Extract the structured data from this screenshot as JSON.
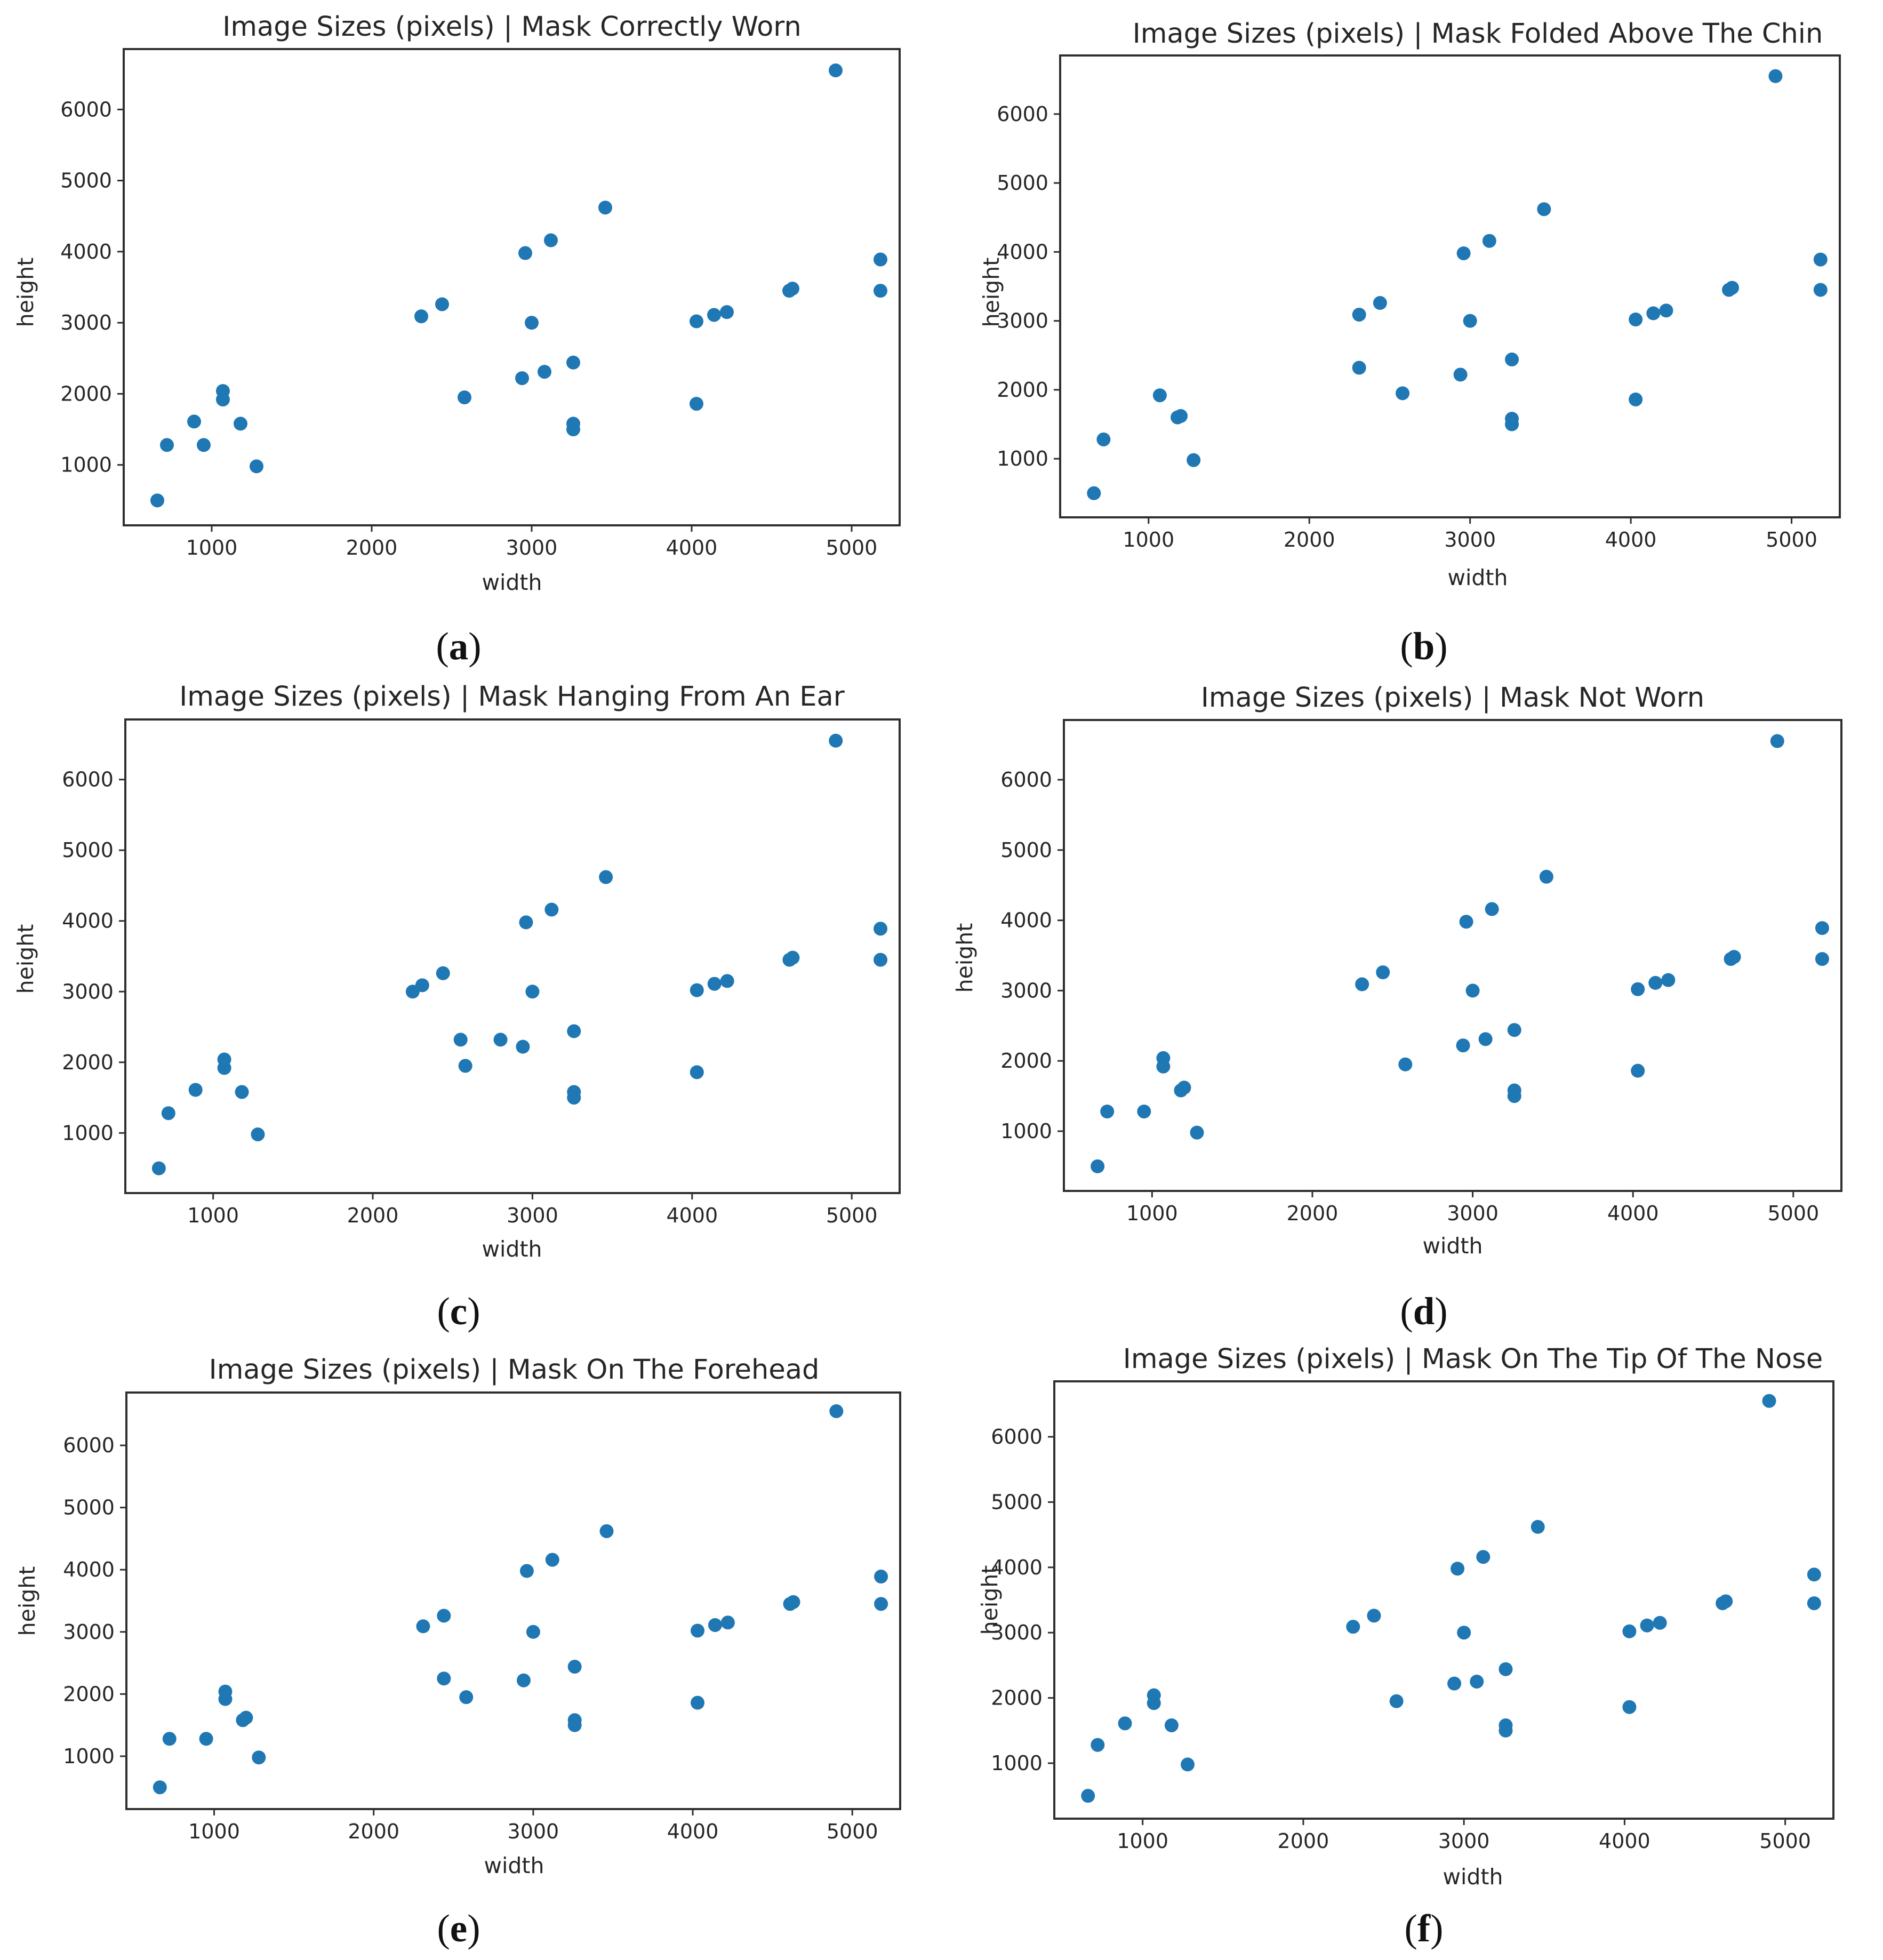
{
  "figure": {
    "point_color": "#1f77b4",
    "panels": [
      {
        "chart_data": {
          "type": "scatter",
          "title": "Image Sizes (pixels) | Mask Correctly Worn",
          "xlabel": "width",
          "ylabel": "height",
          "xlim": [
            450,
            5300
          ],
          "ylim": [
            150,
            6850
          ],
          "xticks": [
            1000,
            2000,
            3000,
            4000,
            5000
          ],
          "yticks": [
            1000,
            2000,
            3000,
            4000,
            5000,
            6000
          ],
          "points": [
            [
              660,
              500
            ],
            [
              720,
              1280
            ],
            [
              890,
              1610
            ],
            [
              950,
              1280
            ],
            [
              1070,
              2040
            ],
            [
              1070,
              1920
            ],
            [
              1180,
              1580
            ],
            [
              1280,
              980
            ],
            [
              2310,
              3090
            ],
            [
              2440,
              3260
            ],
            [
              2580,
              1950
            ],
            [
              2940,
              2220
            ],
            [
              2960,
              3980
            ],
            [
              3000,
              3000
            ],
            [
              3080,
              2310
            ],
            [
              3120,
              4160
            ],
            [
              3260,
              2440
            ],
            [
              3260,
              1580
            ],
            [
              3260,
              1500
            ],
            [
              3460,
              4620
            ],
            [
              4030,
              3020
            ],
            [
              4030,
              1860
            ],
            [
              4140,
              3110
            ],
            [
              4220,
              3150
            ],
            [
              4610,
              3450
            ],
            [
              4630,
              3480
            ],
            [
              4900,
              6550
            ],
            [
              5180,
              3890
            ],
            [
              5180,
              3450
            ]
          ]
        },
        "caption": {
          "open": "(",
          "letter": "a",
          "close": ")"
        }
      },
      {
        "chart_data": {
          "type": "scatter",
          "title": "Image Sizes (pixels) | Mask Folded Above The Chin",
          "xlabel": "width",
          "ylabel": "height",
          "xlim": [
            450,
            5300
          ],
          "ylim": [
            150,
            6850
          ],
          "xticks": [
            1000,
            2000,
            3000,
            4000,
            5000
          ],
          "yticks": [
            1000,
            2000,
            3000,
            4000,
            5000,
            6000
          ],
          "points": [
            [
              660,
              500
            ],
            [
              720,
              1280
            ],
            [
              1070,
              1920
            ],
            [
              1180,
              1600
            ],
            [
              1200,
              1620
            ],
            [
              1280,
              980
            ],
            [
              2310,
              3090
            ],
            [
              2310,
              2320
            ],
            [
              2440,
              3260
            ],
            [
              2580,
              1950
            ],
            [
              2940,
              2220
            ],
            [
              2960,
              3980
            ],
            [
              3000,
              3000
            ],
            [
              3120,
              4160
            ],
            [
              3260,
              2440
            ],
            [
              3260,
              1580
            ],
            [
              3260,
              1500
            ],
            [
              3460,
              4620
            ],
            [
              4030,
              3020
            ],
            [
              4030,
              1860
            ],
            [
              4140,
              3110
            ],
            [
              4220,
              3150
            ],
            [
              4610,
              3450
            ],
            [
              4630,
              3480
            ],
            [
              4900,
              6550
            ],
            [
              5180,
              3890
            ],
            [
              5180,
              3450
            ]
          ]
        },
        "caption": {
          "open": "(",
          "letter": "b",
          "close": ")"
        }
      },
      {
        "chart_data": {
          "type": "scatter",
          "title": "Image Sizes (pixels) | Mask Hanging From An Ear",
          "xlabel": "width",
          "ylabel": "height",
          "xlim": [
            450,
            5300
          ],
          "ylim": [
            150,
            6850
          ],
          "xticks": [
            1000,
            2000,
            3000,
            4000,
            5000
          ],
          "yticks": [
            1000,
            2000,
            3000,
            4000,
            5000,
            6000
          ],
          "points": [
            [
              660,
              500
            ],
            [
              720,
              1280
            ],
            [
              890,
              1610
            ],
            [
              1070,
              2040
            ],
            [
              1070,
              1920
            ],
            [
              1180,
              1580
            ],
            [
              1280,
              980
            ],
            [
              2250,
              3000
            ],
            [
              2310,
              3090
            ],
            [
              2440,
              3260
            ],
            [
              2550,
              2320
            ],
            [
              2580,
              1950
            ],
            [
              2800,
              2320
            ],
            [
              2940,
              2220
            ],
            [
              2960,
              3980
            ],
            [
              3000,
              3000
            ],
            [
              3120,
              4160
            ],
            [
              3260,
              2440
            ],
            [
              3260,
              1580
            ],
            [
              3260,
              1500
            ],
            [
              3460,
              4620
            ],
            [
              4030,
              3020
            ],
            [
              4030,
              1860
            ],
            [
              4140,
              3110
            ],
            [
              4220,
              3150
            ],
            [
              4610,
              3450
            ],
            [
              4630,
              3480
            ],
            [
              4900,
              6550
            ],
            [
              5180,
              3890
            ],
            [
              5180,
              3450
            ]
          ]
        },
        "caption": {
          "open": "(",
          "letter": "c",
          "close": ")"
        }
      },
      {
        "chart_data": {
          "type": "scatter",
          "title": "Image Sizes (pixels) | Mask Not Worn",
          "xlabel": "width",
          "ylabel": "height",
          "xlim": [
            450,
            5300
          ],
          "ylim": [
            150,
            6850
          ],
          "xticks": [
            1000,
            2000,
            3000,
            4000,
            5000
          ],
          "yticks": [
            1000,
            2000,
            3000,
            4000,
            5000,
            6000
          ],
          "points": [
            [
              660,
              500
            ],
            [
              720,
              1280
            ],
            [
              950,
              1280
            ],
            [
              1070,
              2040
            ],
            [
              1070,
              1920
            ],
            [
              1180,
              1580
            ],
            [
              1200,
              1620
            ],
            [
              1280,
              980
            ],
            [
              2310,
              3090
            ],
            [
              2440,
              3260
            ],
            [
              2580,
              1950
            ],
            [
              2940,
              2220
            ],
            [
              2960,
              3980
            ],
            [
              3000,
              3000
            ],
            [
              3080,
              2310
            ],
            [
              3120,
              4160
            ],
            [
              3260,
              2440
            ],
            [
              3260,
              1580
            ],
            [
              3260,
              1500
            ],
            [
              3460,
              4620
            ],
            [
              4030,
              3020
            ],
            [
              4030,
              1860
            ],
            [
              4140,
              3110
            ],
            [
              4220,
              3150
            ],
            [
              4610,
              3450
            ],
            [
              4630,
              3480
            ],
            [
              4900,
              6550
            ],
            [
              5180,
              3890
            ],
            [
              5180,
              3450
            ]
          ]
        },
        "caption": {
          "open": "(",
          "letter": "d",
          "close": ")"
        }
      },
      {
        "chart_data": {
          "type": "scatter",
          "title": "Image Sizes (pixels) | Mask On The Forehead",
          "xlabel": "width",
          "ylabel": "height",
          "xlim": [
            450,
            5300
          ],
          "ylim": [
            150,
            6850
          ],
          "xticks": [
            1000,
            2000,
            3000,
            4000,
            5000
          ],
          "yticks": [
            1000,
            2000,
            3000,
            4000,
            5000,
            6000
          ],
          "points": [
            [
              660,
              500
            ],
            [
              720,
              1280
            ],
            [
              950,
              1280
            ],
            [
              1070,
              2040
            ],
            [
              1070,
              1920
            ],
            [
              1180,
              1580
            ],
            [
              1200,
              1620
            ],
            [
              1280,
              980
            ],
            [
              2310,
              3090
            ],
            [
              2440,
              3260
            ],
            [
              2440,
              2250
            ],
            [
              2580,
              1950
            ],
            [
              2940,
              2220
            ],
            [
              2960,
              3980
            ],
            [
              3000,
              3000
            ],
            [
              3120,
              4160
            ],
            [
              3260,
              2440
            ],
            [
              3260,
              1580
            ],
            [
              3260,
              1500
            ],
            [
              3460,
              4620
            ],
            [
              4030,
              3020
            ],
            [
              4030,
              1860
            ],
            [
              4140,
              3110
            ],
            [
              4220,
              3150
            ],
            [
              4610,
              3450
            ],
            [
              4630,
              3480
            ],
            [
              4900,
              6550
            ],
            [
              5180,
              3890
            ],
            [
              5180,
              3450
            ]
          ]
        },
        "caption": {
          "open": "(",
          "letter": "e",
          "close": ")"
        }
      },
      {
        "chart_data": {
          "type": "scatter",
          "title": "Image Sizes (pixels) | Mask On The Tip Of The Nose",
          "xlabel": "width",
          "ylabel": "height",
          "xlim": [
            450,
            5300
          ],
          "ylim": [
            150,
            6850
          ],
          "xticks": [
            1000,
            2000,
            3000,
            4000,
            5000
          ],
          "yticks": [
            1000,
            2000,
            3000,
            4000,
            5000,
            6000
          ],
          "points": [
            [
              660,
              500
            ],
            [
              720,
              1280
            ],
            [
              890,
              1610
            ],
            [
              1070,
              2040
            ],
            [
              1070,
              1920
            ],
            [
              1180,
              1580
            ],
            [
              1280,
              980
            ],
            [
              2310,
              3090
            ],
            [
              2440,
              3260
            ],
            [
              2580,
              1950
            ],
            [
              2940,
              2220
            ],
            [
              2960,
              3980
            ],
            [
              3000,
              3000
            ],
            [
              3080,
              2250
            ],
            [
              3120,
              4160
            ],
            [
              3260,
              2440
            ],
            [
              3260,
              1580
            ],
            [
              3260,
              1500
            ],
            [
              3460,
              4620
            ],
            [
              4030,
              3020
            ],
            [
              4030,
              1860
            ],
            [
              4140,
              3110
            ],
            [
              4220,
              3150
            ],
            [
              4610,
              3450
            ],
            [
              4630,
              3480
            ],
            [
              4900,
              6550
            ],
            [
              5180,
              3890
            ],
            [
              5180,
              3450
            ]
          ]
        },
        "caption": {
          "open": "(",
          "letter": "f",
          "close": ")"
        }
      }
    ]
  }
}
